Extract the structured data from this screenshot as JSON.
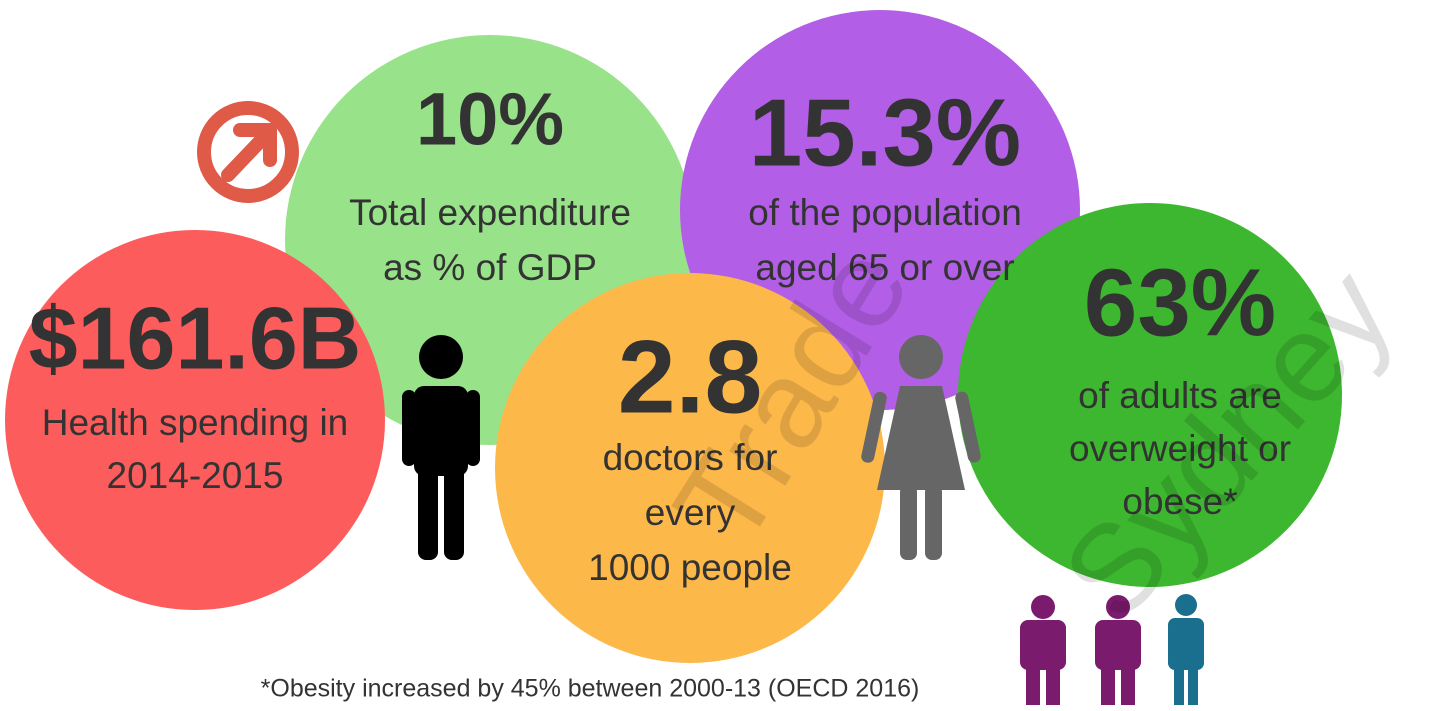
{
  "stats": [
    {
      "value": "10%",
      "lines": [
        "Total expenditure",
        "as % of GDP"
      ]
    },
    {
      "value": "15.3%",
      "lines": [
        "of the population",
        "aged 65 or over"
      ]
    },
    {
      "value": "$161.6B",
      "lines": [
        "Health spending in",
        "2014-2015"
      ]
    },
    {
      "value": "63%",
      "lines": [
        "of adults are",
        "overweight or",
        "obese*"
      ]
    },
    {
      "value": "2.8",
      "lines": [
        "doctors for",
        "every",
        "1000 people"
      ]
    }
  ],
  "footnote": "*Obesity increased by 45% between 2000-13 (OECD 2016)",
  "watermark": [
    "Trade",
    "Sydney"
  ]
}
